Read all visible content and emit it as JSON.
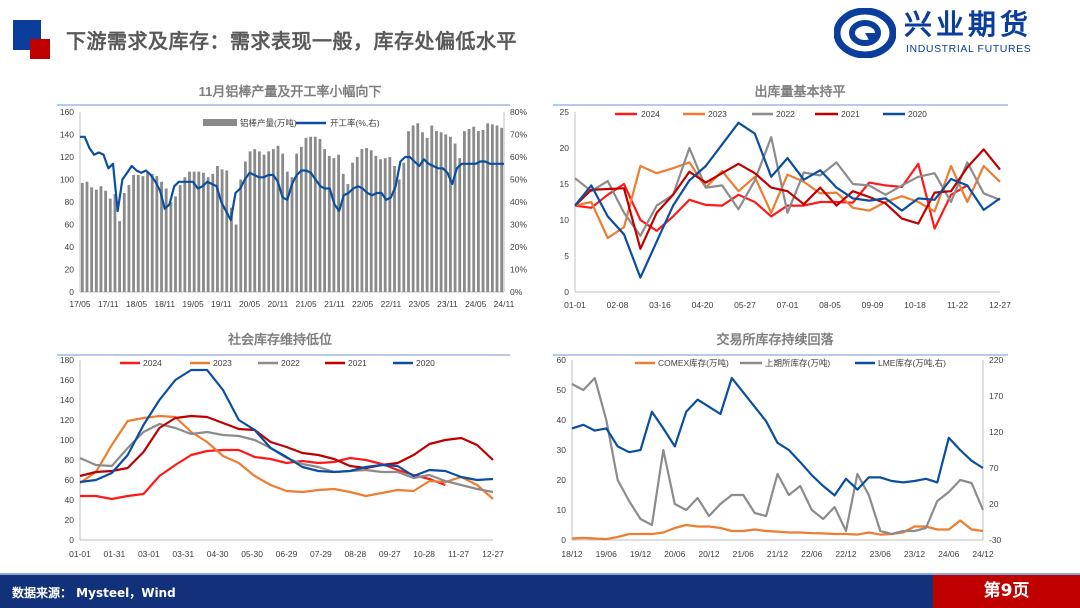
{
  "header": {
    "title": "下游需求及库存：需求表现一般，库存处偏低水平"
  },
  "logo": {
    "name_cn": "兴业期货",
    "name_en": "INDUSTRIAL FUTURES"
  },
  "footer": {
    "source": "数据来源： Mysteel，Wind",
    "page": "第9页"
  },
  "colors": {
    "blue": "#0a3d9c",
    "red": "#c00000",
    "footer": "#13307a"
  },
  "chart_data": [
    {
      "type": "bar+line",
      "title": "11月铝棒产量及开工率小幅向下",
      "x_labels": [
        "17/05",
        "17/11",
        "18/05",
        "18/11",
        "19/05",
        "19/11",
        "20/05",
        "20/11",
        "21/05",
        "21/11",
        "22/05",
        "22/11",
        "23/05",
        "23/11",
        "24/05",
        "24/11"
      ],
      "x_range": [
        "17/05",
        "24/11"
      ],
      "ylim": [
        0,
        160
      ],
      "ylim_right": [
        0,
        80
      ],
      "yticks_left": [
        "0",
        "20",
        "40",
        "60",
        "80",
        "100",
        "120",
        "140",
        "160"
      ],
      "yticks_right": [
        "0%",
        "10%",
        "20%",
        "30%",
        "40%",
        "50%",
        "60%",
        "70%",
        "80%"
      ],
      "legend": [
        "铝棒产量(万吨)",
        "开工率(%,右)"
      ],
      "series": [
        {
          "name": "铝棒产量(万吨)",
          "kind": "bar",
          "axis": "left",
          "color": "#8a8a8a",
          "values": [
            97,
            98,
            93,
            91,
            94,
            90,
            83,
            87,
            63,
            88,
            95,
            104,
            104,
            103,
            106,
            105,
            103,
            98,
            92,
            80,
            85,
            95,
            102,
            107,
            107,
            107,
            106,
            102,
            105,
            112,
            109,
            108,
            75,
            60,
            100,
            116,
            125,
            127,
            125,
            122,
            125,
            127,
            130,
            123,
            107,
            102,
            123,
            129,
            137,
            138,
            138,
            136,
            127,
            121,
            119,
            122,
            105,
            96,
            115,
            120,
            127,
            128,
            126,
            121,
            118,
            119,
            120,
            112,
            100,
            115,
            143,
            148,
            150,
            142,
            137,
            148,
            143,
            142,
            140,
            138,
            132,
            119,
            143,
            145,
            147,
            143,
            144,
            150,
            149,
            148,
            146
          ]
        },
        {
          "name": "开工率(%,右)",
          "kind": "line",
          "axis": "right",
          "color": "#0a4ea2",
          "values": [
            69,
            69,
            64,
            61,
            62,
            61,
            55,
            57,
            36,
            50,
            53,
            56,
            54,
            53,
            54,
            52,
            49,
            45,
            37,
            39,
            47,
            49,
            49,
            49,
            49,
            46,
            47,
            49,
            48,
            47,
            40,
            36,
            32,
            44,
            46,
            50,
            53,
            52,
            51,
            51,
            52,
            52,
            49,
            42,
            41,
            48,
            52,
            54,
            54,
            53,
            50,
            47,
            46,
            46,
            39,
            36,
            43,
            44,
            46,
            47,
            46,
            44,
            43,
            44,
            44,
            41,
            42,
            47,
            58,
            60,
            60,
            58,
            56,
            59,
            57,
            56,
            55,
            55,
            53,
            48,
            55,
            57,
            57,
            57,
            57,
            58,
            58,
            57,
            57,
            57,
            57
          ]
        }
      ]
    },
    {
      "type": "line",
      "title": "出库量基本持平",
      "x_labels": [
        "01-01",
        "02-08",
        "03-16",
        "04-20",
        "05-27",
        "07-01",
        "08-05",
        "09-09",
        "10-18",
        "11-22",
        "12-27"
      ],
      "x_domain": [
        0,
        26
      ],
      "ylim": [
        0,
        25
      ],
      "yticks_left": [
        "0",
        "5",
        "10",
        "15",
        "20",
        "25"
      ],
      "legend": [
        "2024",
        "2023",
        "2022",
        "2021",
        "2020"
      ],
      "series": [
        {
          "name": "2024",
          "color": "#ff1a1a",
          "values": [
            12,
            11.7,
            13.5,
            15,
            10,
            8.5,
            10.5,
            12.8,
            12.1,
            12,
            13.5,
            12.5,
            10.5,
            12,
            12,
            12.5,
            12.5,
            12.4,
            15.2,
            14.8,
            14.6,
            17.8,
            8.8,
            13.5,
            14.8
          ]
        },
        {
          "name": "2023",
          "color": "#ed7d31",
          "values": [
            12,
            12.5,
            7.5,
            9,
            17.5,
            16.5,
            17.2,
            18,
            14.5,
            16.8,
            14,
            16,
            11,
            16.3,
            15.3,
            13.7,
            13.8,
            11.7,
            11.3,
            12.5,
            13.3,
            12.5,
            11.2,
            17.5,
            12.5,
            17.5,
            15.3
          ]
        },
        {
          "name": "2022",
          "color": "#8c8c8c",
          "values": [
            15.8,
            14,
            15.4,
            11,
            7.8,
            12,
            13.5,
            20,
            14.5,
            14.8,
            11.5,
            15.5,
            21.5,
            11,
            16.6,
            16.2,
            18,
            15,
            14.8,
            13.5,
            14.8,
            16,
            16.5,
            12.5,
            18,
            13.7,
            12.8
          ]
        },
        {
          "name": "2021",
          "color": "#c00000",
          "values": [
            12,
            14.2,
            14.3,
            14.4,
            6,
            11,
            13.5,
            16.7,
            15.2,
            16.5,
            17.8,
            16.5,
            14.5,
            14,
            12.2,
            14.5,
            12,
            14,
            13.2,
            12.3,
            10.2,
            9.5,
            13.8,
            14,
            17.3,
            19.8,
            17
          ]
        },
        {
          "name": "2020",
          "color": "#0a4ea2",
          "values": [
            12,
            14.8,
            10.5,
            8,
            2,
            7,
            12,
            15.5,
            17.5,
            20.5,
            23.5,
            22,
            16,
            18.6,
            15.6,
            16.9,
            14.5,
            13,
            12.7,
            13,
            11.3,
            13,
            12.8,
            15.7,
            14.8,
            11.4,
            13
          ]
        }
      ]
    },
    {
      "type": "line",
      "title": "社会库存维持低位",
      "x_labels": [
        "01-01",
        "01-31",
        "03-01",
        "03-31",
        "04-30",
        "05-30",
        "06-29",
        "07-29",
        "08-28",
        "09-27",
        "10-28",
        "11-27",
        "12-27"
      ],
      "x_domain": [
        0,
        26
      ],
      "ylim": [
        0,
        180
      ],
      "yticks_left": [
        "0",
        "20",
        "40",
        "60",
        "80",
        "100",
        "120",
        "140",
        "160",
        "180"
      ],
      "legend": [
        "2024",
        "2023",
        "2022",
        "2021",
        "2020"
      ],
      "series": [
        {
          "name": "2024",
          "color": "#ff1a1a",
          "values": [
            44,
            44,
            41,
            44,
            46,
            64,
            75,
            85,
            89,
            90,
            90,
            83,
            81,
            77,
            79,
            77,
            78,
            82,
            80,
            76,
            70,
            65,
            61,
            55
          ]
        },
        {
          "name": "2023",
          "color": "#ed7d31",
          "values": [
            57,
            68,
            95,
            119,
            122,
            124,
            123,
            108,
            98,
            84,
            77,
            64,
            55,
            49,
            48,
            50,
            51,
            48,
            44,
            47,
            50,
            49,
            59,
            58,
            63,
            55,
            41
          ]
        },
        {
          "name": "2022",
          "color": "#8c8c8c",
          "values": [
            82,
            75,
            74,
            92,
            108,
            116,
            112,
            106,
            108,
            105,
            104,
            100,
            92,
            82,
            76,
            73,
            68,
            69,
            70,
            68,
            68,
            62,
            65,
            59,
            55,
            51,
            48
          ]
        },
        {
          "name": "2021",
          "color": "#c00000",
          "values": [
            64,
            68,
            69,
            72,
            88,
            112,
            122,
            124,
            123,
            117,
            111,
            110,
            98,
            93,
            87,
            85,
            81,
            74,
            72,
            75,
            77,
            85,
            96,
            100,
            102,
            95,
            80
          ]
        },
        {
          "name": "2020",
          "color": "#0a4ea2",
          "values": [
            58,
            60,
            67,
            85,
            115,
            140,
            160,
            170,
            170,
            150,
            120,
            110,
            92,
            83,
            73,
            69,
            68,
            69,
            73,
            75,
            74,
            64,
            70,
            69,
            63,
            60,
            61
          ]
        }
      ]
    },
    {
      "type": "line",
      "title": "交易所库存持续回落",
      "x_labels": [
        "18/12",
        "19/06",
        "19/12",
        "20/06",
        "20/12",
        "21/06",
        "21/12",
        "22/06",
        "22/12",
        "23/06",
        "23/12",
        "24/06",
        "24/12"
      ],
      "x_domain": [
        0,
        36
      ],
      "ylim": [
        0,
        60
      ],
      "ylim_right": [
        -30,
        220
      ],
      "yticks_left": [
        "0",
        "10",
        "20",
        "30",
        "40",
        "50",
        "60"
      ],
      "yticks_right": [
        "-30",
        "20",
        "70",
        "120",
        "170",
        "220"
      ],
      "legend": [
        "COMEX库存(万吨)",
        "上期所库存(万吨)",
        "LME库存(万吨,右)"
      ],
      "series": [
        {
          "name": "COMEX库存(万吨)",
          "axis": "left",
          "color": "#ed7d31",
          "values": [
            0.5,
            0.7,
            0.5,
            0.3,
            1,
            2,
            2,
            2,
            2.5,
            4,
            5,
            4.5,
            4.5,
            4,
            3,
            3,
            3.5,
            3,
            2.8,
            2.5,
            2.5,
            2.3,
            2.2,
            2,
            2,
            1.8,
            2.5,
            1.8,
            2,
            2.5,
            4.5,
            4.5,
            3.5,
            3.5,
            6.5,
            3.5,
            3
          ]
        },
        {
          "name": "上期所库存(万吨)",
          "axis": "left",
          "color": "#8c8c8c",
          "values": [
            52,
            50,
            54,
            40,
            20,
            13,
            7,
            5,
            30,
            12,
            10,
            14,
            8,
            12,
            15,
            15,
            9,
            8,
            22,
            15,
            18,
            10,
            7,
            11,
            3,
            22,
            15,
            3,
            2,
            3,
            3,
            4,
            13,
            16,
            20,
            19,
            10
          ]
        },
        {
          "name": "LME库存(万吨,右)",
          "axis": "right",
          "color": "#0a4ea2",
          "values": [
            125,
            130,
            122,
            125,
            100,
            92,
            95,
            148,
            125,
            100,
            148,
            165,
            155,
            145,
            195,
            175,
            155,
            135,
            105,
            95,
            78,
            60,
            45,
            32,
            55,
            40,
            57,
            57,
            52,
            50,
            52,
            55,
            50,
            112,
            95,
            80,
            70
          ]
        }
      ]
    }
  ]
}
